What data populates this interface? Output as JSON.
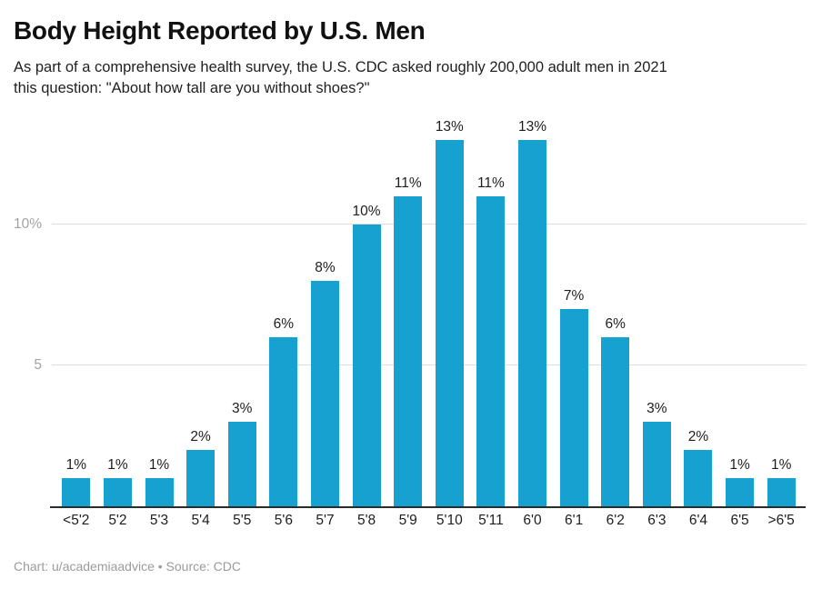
{
  "page": {
    "title": "Body Height Reported by U.S. Men",
    "subtitle_line1": "As part of a comprehensive health survey, the U.S. CDC asked roughly 200,000 adult men in 2021",
    "subtitle_line2": "this question: \"About how tall are you without shoes?\"",
    "footer": "Chart: u/academiaadvice • Source: CDC"
  },
  "chart_data": {
    "type": "bar",
    "title": "Body Height Reported by U.S. Men",
    "subtitle": "As part of a comprehensive health survey, the U.S. CDC asked roughly 200,000 adult men in 2021 this question: \"About how tall are you without shoes?\"",
    "xlabel": "",
    "ylabel": "",
    "unit": "%",
    "categories": [
      "<5'2",
      "5'2",
      "5'3",
      "5'4",
      "5'5",
      "5'6",
      "5'7",
      "5'8",
      "5'9",
      "5'10",
      "5'11",
      "6'0",
      "6'1",
      "6'2",
      "6'3",
      "6'4",
      "6'5",
      ">6'5"
    ],
    "values": [
      1,
      1,
      1,
      2,
      3,
      6,
      8,
      10,
      11,
      13,
      11,
      13,
      7,
      6,
      3,
      2,
      1,
      1
    ],
    "data_labels": [
      "1%",
      "1%",
      "1%",
      "2%",
      "3%",
      "6%",
      "8%",
      "10%",
      "11%",
      "13%",
      "11%",
      "13%",
      "7%",
      "6%",
      "3%",
      "2%",
      "1%",
      "1%"
    ],
    "y_ticks": [
      {
        "value": 5,
        "label": "5"
      },
      {
        "value": 10,
        "label": "10%"
      }
    ],
    "ylim": [
      0,
      13.8
    ],
    "grid": "horizontal",
    "legend": "none",
    "bar_color": "#17a1d0",
    "gridline_color": "#dddddd",
    "axis_line_color": "#2b2b2b",
    "attribution": "Chart: u/academiaadvice • Source: CDC"
  }
}
